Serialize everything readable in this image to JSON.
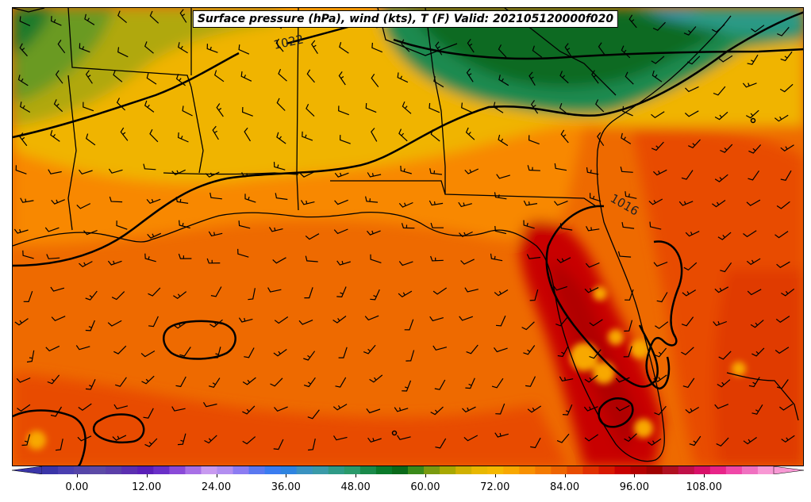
{
  "title": "Surface pressure (hPa), wind (kts), T (F) Valid: 202105120000f020",
  "isobar_labels": [
    "1022",
    "1016"
  ],
  "colorbar": {
    "ticks": [
      "0.00",
      "12.00",
      "24.00",
      "36.00",
      "48.00",
      "60.00",
      "72.00",
      "84.00",
      "96.00",
      "108.00"
    ],
    "min": -6,
    "max": 120,
    "colors": [
      "#3a35a8",
      "#4a3fb0",
      "#5545a8",
      "#5c4aa6",
      "#5b3fa8",
      "#5b2fb0",
      "#5a1fb8",
      "#6a2fc8",
      "#8a4ad8",
      "#a870e6",
      "#c89af0",
      "#b28ef0",
      "#8c7cf2",
      "#5a78f0",
      "#3a7cf0",
      "#2e84e0",
      "#3a92c0",
      "#3a9aa8",
      "#2f9a86",
      "#2a9a6a",
      "#1a8a4a",
      "#0a7a2a",
      "#0a6a1a",
      "#3a8a1a",
      "#7a9a10",
      "#a8a800",
      "#d0b000",
      "#e8b800",
      "#f4b800",
      "#f8a800",
      "#f89000",
      "#f47a00",
      "#ee6400",
      "#e84c00",
      "#e03000",
      "#d81800",
      "#c80000",
      "#b40000",
      "#a00000",
      "#b01020",
      "#c01048",
      "#d81068",
      "#e82488",
      "#f048a8",
      "#f070c0",
      "#f898d4"
    ]
  }
}
